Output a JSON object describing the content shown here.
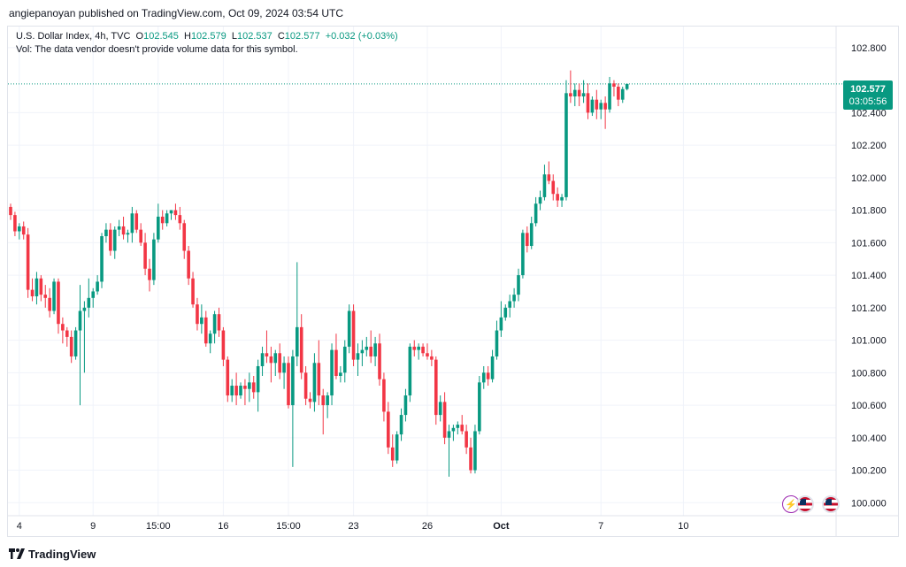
{
  "header": {
    "published_line": "angiepanoyan published on TradingView.com, Oct 09, 2024 03:54 UTC"
  },
  "legend": {
    "symbol_line": "U.S. Dollar Index, 4h, TVC",
    "open_label": "O",
    "open_value": "102.545",
    "high_label": "H",
    "high_value": "102.579",
    "low_label": "L",
    "low_value": "102.537",
    "close_label": "C",
    "close_value": "102.577",
    "change": "+0.032 (+0.03%)",
    "volume_note": "Vol: The data vendor doesn't provide volume data for this symbol."
  },
  "price_label": {
    "price": "102.577",
    "countdown": "03:05:56"
  },
  "colors": {
    "up": "#089981",
    "down": "#f23645",
    "grid": "#f0f3fa",
    "text": "#131722"
  },
  "footer": {
    "brand": "TradingView"
  },
  "event_icons": [
    "lightning-icon",
    "us-flag-icon",
    "us-flag-icon"
  ],
  "chart_data": {
    "type": "candlestick",
    "title": "U.S. Dollar Index, 4h, TVC",
    "ylim": [
      99.92,
      102.93
    ],
    "y_ticks": [
      "100.000",
      "100.200",
      "100.400",
      "100.600",
      "100.800",
      "101.000",
      "101.200",
      "101.400",
      "101.600",
      "101.800",
      "102.000",
      "102.200",
      "102.400",
      "102.800"
    ],
    "y_tick_values": [
      100.0,
      100.2,
      100.4,
      100.6,
      100.8,
      101.0,
      101.2,
      101.4,
      101.6,
      101.8,
      102.0,
      102.2,
      102.4,
      102.8
    ],
    "x_ticks": [
      {
        "label": "4",
        "index": 2
      },
      {
        "label": "9",
        "index": 19
      },
      {
        "label": "15:00",
        "index": 34
      },
      {
        "label": "16",
        "index": 49
      },
      {
        "label": "15:00",
        "index": 64
      },
      {
        "label": "23",
        "index": 79
      },
      {
        "label": "26",
        "index": 96
      },
      {
        "label": "Oct",
        "index": 113
      },
      {
        "label": "7",
        "index": 136
      },
      {
        "label": "10",
        "index": 155
      }
    ],
    "last_price": 102.577,
    "candles": [
      [
        101.82,
        101.84,
        101.74,
        101.77
      ],
      [
        101.77,
        101.79,
        101.64,
        101.67
      ],
      [
        101.67,
        101.72,
        101.62,
        101.7
      ],
      [
        101.7,
        101.73,
        101.62,
        101.65
      ],
      [
        101.65,
        101.69,
        101.26,
        101.31
      ],
      [
        101.31,
        101.38,
        101.24,
        101.27
      ],
      [
        101.27,
        101.42,
        101.22,
        101.38
      ],
      [
        101.38,
        101.4,
        101.24,
        101.28
      ],
      [
        101.28,
        101.34,
        101.2,
        101.26
      ],
      [
        101.26,
        101.32,
        101.14,
        101.18
      ],
      [
        101.18,
        101.38,
        101.16,
        101.36
      ],
      [
        101.36,
        101.38,
        101.04,
        101.1
      ],
      [
        101.1,
        101.14,
        100.98,
        101.06
      ],
      [
        101.06,
        101.08,
        100.96,
        101.02
      ],
      [
        101.02,
        101.06,
        100.86,
        100.9
      ],
      [
        100.9,
        101.08,
        100.88,
        101.06
      ],
      [
        101.06,
        101.34,
        100.6,
        101.18
      ],
      [
        101.18,
        101.24,
        100.8,
        101.2
      ],
      [
        101.2,
        101.38,
        101.14,
        101.26
      ],
      [
        101.26,
        101.32,
        101.2,
        101.3
      ],
      [
        101.3,
        101.4,
        101.28,
        101.36
      ],
      [
        101.36,
        101.66,
        101.32,
        101.64
      ],
      [
        101.64,
        101.72,
        101.6,
        101.68
      ],
      [
        101.68,
        101.72,
        101.52,
        101.55
      ],
      [
        101.55,
        101.7,
        101.5,
        101.68
      ],
      [
        101.68,
        101.74,
        101.64,
        101.7
      ],
      [
        101.7,
        101.76,
        101.62,
        101.65
      ],
      [
        101.65,
        101.68,
        101.6,
        101.66
      ],
      [
        101.66,
        101.82,
        101.6,
        101.78
      ],
      [
        101.78,
        101.8,
        101.66,
        101.68
      ],
      [
        101.68,
        101.72,
        101.58,
        101.6
      ],
      [
        101.6,
        101.66,
        101.4,
        101.44
      ],
      [
        101.44,
        101.5,
        101.3,
        101.37
      ],
      [
        101.37,
        101.66,
        101.34,
        101.62
      ],
      [
        101.62,
        101.84,
        101.6,
        101.76
      ],
      [
        101.76,
        101.8,
        101.68,
        101.72
      ],
      [
        101.72,
        101.8,
        101.7,
        101.78
      ],
      [
        101.78,
        101.8,
        101.74,
        101.8
      ],
      [
        101.8,
        101.84,
        101.74,
        101.77
      ],
      [
        101.77,
        101.82,
        101.68,
        101.72
      ],
      [
        101.72,
        101.74,
        101.5,
        101.55
      ],
      [
        101.55,
        101.58,
        101.34,
        101.38
      ],
      [
        101.38,
        101.42,
        101.2,
        101.22
      ],
      [
        101.22,
        101.26,
        101.06,
        101.1
      ],
      [
        101.1,
        101.22,
        101.04,
        101.14
      ],
      [
        101.14,
        101.18,
        100.96,
        100.98
      ],
      [
        100.98,
        101.06,
        100.92,
        101.04
      ],
      [
        101.04,
        101.18,
        100.98,
        101.16
      ],
      [
        101.16,
        101.2,
        101.02,
        101.06
      ],
      [
        101.06,
        101.08,
        100.84,
        100.88
      ],
      [
        100.88,
        100.9,
        100.62,
        100.66
      ],
      [
        100.66,
        100.76,
        100.62,
        100.72
      ],
      [
        100.72,
        100.8,
        100.6,
        100.66
      ],
      [
        100.66,
        100.74,
        100.64,
        100.72
      ],
      [
        100.72,
        100.76,
        100.6,
        100.7
      ],
      [
        100.7,
        100.8,
        100.62,
        100.74
      ],
      [
        100.74,
        100.78,
        100.64,
        100.68
      ],
      [
        100.68,
        100.88,
        100.56,
        100.84
      ],
      [
        100.84,
        100.96,
        100.78,
        100.92
      ],
      [
        100.92,
        101.06,
        100.86,
        100.9
      ],
      [
        100.9,
        100.96,
        100.74,
        100.86
      ],
      [
        100.86,
        100.94,
        100.78,
        100.92
      ],
      [
        100.92,
        100.98,
        100.76,
        100.8
      ],
      [
        100.8,
        100.9,
        100.7,
        100.86
      ],
      [
        100.86,
        100.9,
        100.58,
        100.6
      ],
      [
        100.6,
        100.94,
        100.22,
        100.9
      ],
      [
        100.9,
        101.48,
        100.84,
        101.08
      ],
      [
        101.08,
        101.16,
        100.76,
        100.8
      ],
      [
        100.8,
        100.84,
        100.6,
        100.64
      ],
      [
        100.64,
        100.68,
        100.58,
        100.62
      ],
      [
        100.62,
        100.92,
        100.56,
        100.86
      ],
      [
        100.86,
        101.0,
        100.6,
        100.66
      ],
      [
        100.66,
        100.7,
        100.42,
        100.6
      ],
      [
        100.6,
        100.68,
        100.52,
        100.66
      ],
      [
        100.66,
        100.98,
        100.6,
        100.94
      ],
      [
        100.94,
        101.04,
        100.76,
        100.78
      ],
      [
        100.78,
        100.84,
        100.74,
        100.8
      ],
      [
        100.8,
        101.0,
        100.74,
        100.96
      ],
      [
        100.96,
        101.22,
        100.92,
        101.18
      ],
      [
        101.18,
        101.22,
        100.84,
        100.88
      ],
      [
        100.88,
        100.98,
        100.78,
        100.92
      ],
      [
        100.92,
        101.0,
        100.84,
        100.94
      ],
      [
        100.94,
        101.02,
        100.9,
        100.96
      ],
      [
        100.96,
        101.06,
        100.86,
        100.9
      ],
      [
        100.9,
        101.02,
        100.84,
        100.98
      ],
      [
        100.98,
        101.04,
        100.72,
        100.76
      ],
      [
        100.76,
        100.8,
        100.5,
        100.56
      ],
      [
        100.56,
        100.62,
        100.3,
        100.34
      ],
      [
        100.34,
        100.42,
        100.22,
        100.26
      ],
      [
        100.26,
        100.44,
        100.24,
        100.42
      ],
      [
        100.42,
        100.58,
        100.38,
        100.54
      ],
      [
        100.54,
        100.7,
        100.5,
        100.66
      ],
      [
        100.66,
        100.98,
        100.62,
        100.96
      ],
      [
        100.96,
        101.0,
        100.9,
        100.94
      ],
      [
        100.94,
        100.98,
        100.88,
        100.96
      ],
      [
        100.96,
        100.98,
        100.9,
        100.92
      ],
      [
        100.92,
        100.98,
        100.88,
        100.9
      ],
      [
        100.9,
        100.94,
        100.84,
        100.88
      ],
      [
        100.88,
        100.9,
        100.48,
        100.54
      ],
      [
        100.54,
        100.66,
        100.5,
        100.62
      ],
      [
        100.62,
        100.68,
        100.36,
        100.4
      ],
      [
        100.4,
        100.48,
        100.16,
        100.44
      ],
      [
        100.44,
        100.48,
        100.38,
        100.46
      ],
      [
        100.46,
        100.5,
        100.42,
        100.48
      ],
      [
        100.48,
        100.54,
        100.42,
        100.44
      ],
      [
        100.44,
        100.48,
        100.3,
        100.34
      ],
      [
        100.34,
        100.4,
        100.18,
        100.2
      ],
      [
        100.2,
        100.48,
        100.18,
        100.44
      ],
      [
        100.44,
        100.78,
        100.42,
        100.74
      ],
      [
        100.74,
        100.84,
        100.7,
        100.8
      ],
      [
        100.8,
        100.84,
        100.72,
        100.76
      ],
      [
        100.76,
        100.94,
        100.74,
        100.9
      ],
      [
        100.9,
        101.12,
        100.88,
        101.06
      ],
      [
        101.06,
        101.24,
        101.02,
        101.14
      ],
      [
        101.14,
        101.22,
        101.12,
        101.2
      ],
      [
        101.2,
        101.28,
        101.14,
        101.24
      ],
      [
        101.24,
        101.32,
        101.2,
        101.28
      ],
      [
        101.28,
        101.44,
        101.24,
        101.4
      ],
      [
        101.4,
        101.68,
        101.38,
        101.66
      ],
      [
        101.66,
        101.7,
        101.54,
        101.58
      ],
      [
        101.58,
        101.76,
        101.56,
        101.72
      ],
      [
        101.72,
        101.88,
        101.7,
        101.84
      ],
      [
        101.84,
        101.92,
        101.8,
        101.88
      ],
      [
        101.88,
        102.08,
        101.86,
        102.02
      ],
      [
        102.02,
        102.1,
        101.96,
        101.98
      ],
      [
        101.98,
        102.02,
        101.86,
        101.9
      ],
      [
        101.9,
        101.94,
        101.82,
        101.86
      ],
      [
        101.86,
        101.9,
        101.82,
        101.88
      ],
      [
        101.88,
        102.6,
        101.86,
        102.52
      ],
      [
        102.52,
        102.66,
        102.46,
        102.5
      ],
      [
        102.5,
        102.58,
        102.44,
        102.54
      ],
      [
        102.54,
        102.58,
        102.44,
        102.5
      ],
      [
        102.5,
        102.6,
        102.46,
        102.52
      ],
      [
        102.52,
        102.58,
        102.36,
        102.4
      ],
      [
        102.4,
        102.5,
        102.38,
        102.48
      ],
      [
        102.48,
        102.54,
        102.36,
        102.42
      ],
      [
        102.42,
        102.48,
        102.36,
        102.46
      ],
      [
        102.46,
        102.5,
        102.3,
        102.42
      ],
      [
        102.42,
        102.62,
        102.4,
        102.58
      ],
      [
        102.58,
        102.6,
        102.5,
        102.56
      ],
      [
        102.56,
        102.58,
        102.44,
        102.48
      ],
      [
        102.48,
        102.56,
        102.46,
        102.545
      ],
      [
        102.545,
        102.579,
        102.537,
        102.577
      ]
    ]
  }
}
